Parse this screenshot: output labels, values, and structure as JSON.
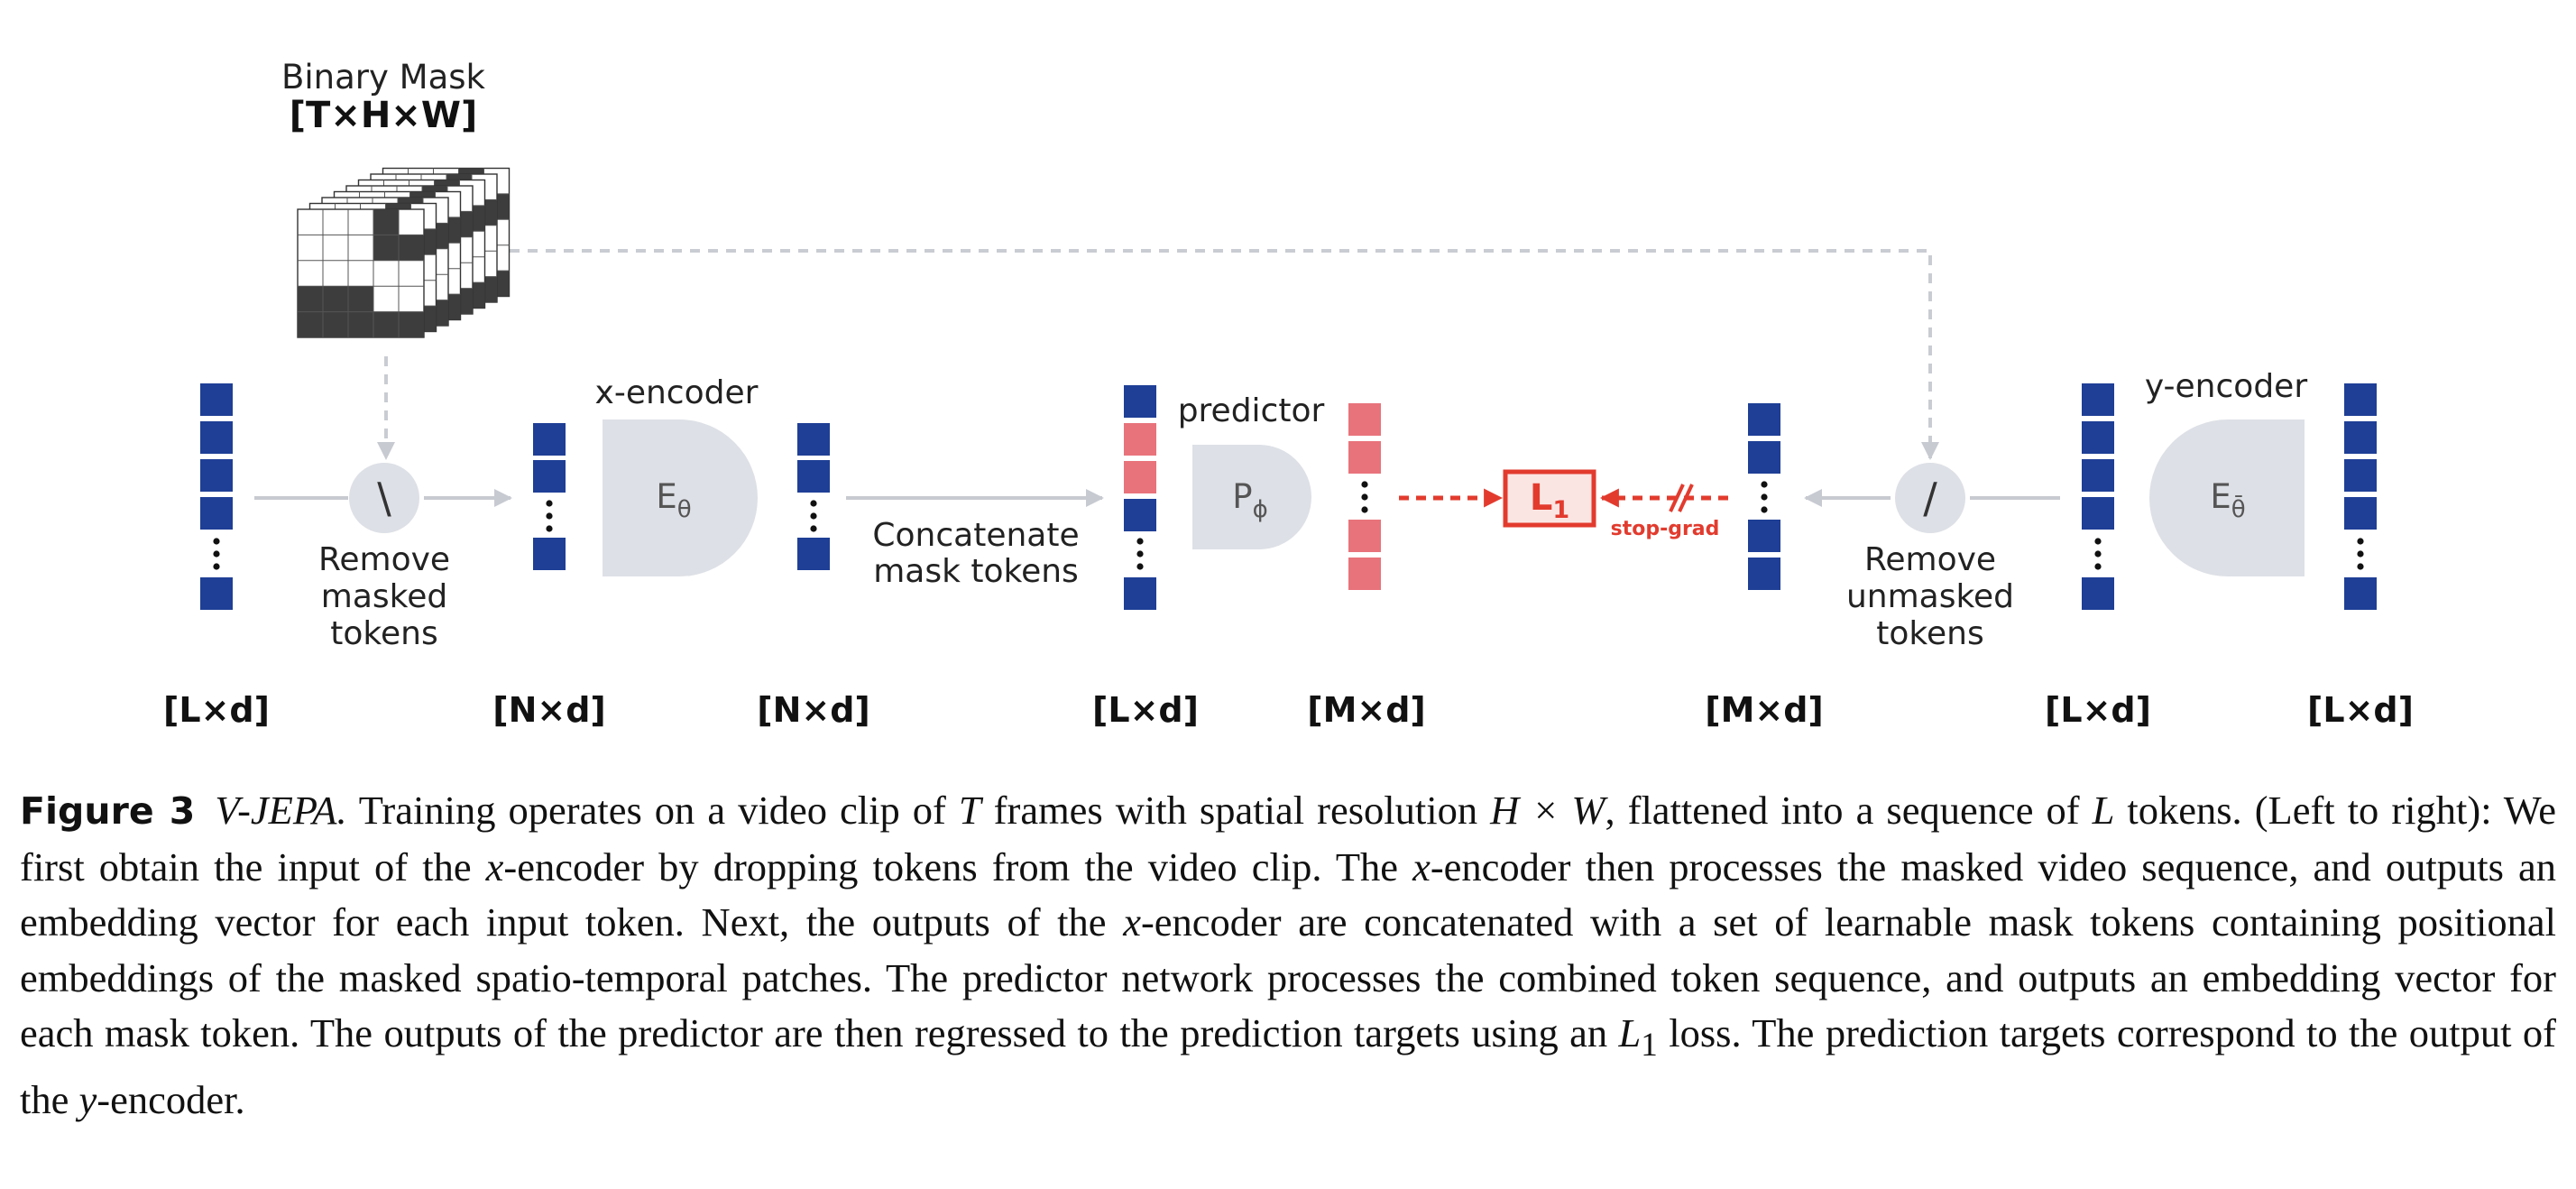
{
  "diagram": {
    "binary_mask": {
      "title": "Binary Mask",
      "dims": "[T×H×W]"
    },
    "ops": {
      "remove_masked": {
        "symbol": "\\",
        "lines": [
          "Remove",
          "masked",
          "tokens"
        ]
      },
      "remove_unmasked": {
        "symbol": "/",
        "lines": [
          "Remove",
          "unmasked",
          "tokens"
        ]
      },
      "concatenate": {
        "lines": [
          "Concatenate",
          "mask tokens"
        ]
      }
    },
    "x_encoder": {
      "title": "x-encoder",
      "base": "E",
      "sub": "θ"
    },
    "predictor": {
      "title": "predictor",
      "base": "P",
      "sub": "ϕ"
    },
    "y_encoder": {
      "title": "y-encoder",
      "base": "E",
      "sub": "θ̄"
    },
    "loss": {
      "base": "L",
      "sub": "1",
      "stop_grad": "stop-grad"
    },
    "shape_labels": [
      "[L×d]",
      "[N×d]",
      "[N×d]",
      "[L×d]",
      "[M×d]",
      "[M×d]",
      "[L×d]",
      "[L×d]"
    ],
    "colors": {
      "token_blue": "#1f3f96",
      "mask_red": "#e8737b",
      "module_gray": "#dde0e6",
      "arrow_gray": "#c7cad1",
      "dashed_gray": "#c9ccd2",
      "loss_red": "#e23b2e",
      "loss_fill": "#fbe5e3"
    }
  },
  "caption": {
    "label": "Figure 3",
    "title": "V-JEPA.",
    "segments": [
      " Training operates on a video clip of ",
      "T",
      " frames with spatial resolution ",
      "H × W",
      ", flattened into a sequence of ",
      "L",
      " tokens. (Left to right): We first obtain the input of the ",
      "x",
      "-encoder by dropping tokens from the video clip. The ",
      "x",
      "-encoder then processes the masked video sequence, and outputs an embedding vector for each input token. Next, the outputs of the ",
      "x",
      "-encoder are concatenated with a set of learnable mask tokens containing positional embeddings of the masked spatio-temporal patches. The predictor network processes the combined token sequence, and outputs an embedding vector for each mask token. The outputs of the predictor are then regressed to the prediction targets using an ",
      "L",
      "1",
      " loss. The prediction targets correspond to the output of the ",
      "y",
      "-encoder."
    ]
  }
}
